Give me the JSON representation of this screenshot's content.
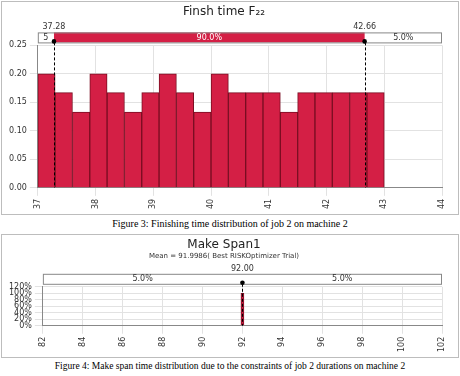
{
  "chart_data": [
    {
      "type": "histogram",
      "title": "Finsh time F₂₂",
      "bins": [
        37,
        37.3,
        37.6,
        37.9,
        38.2,
        38.5,
        38.8,
        39.1,
        39.4,
        39.7,
        40,
        40.3,
        40.6,
        40.9,
        41.2,
        41.5,
        41.8,
        42.1,
        42.4,
        42.7,
        43
      ],
      "values": [
        0.2,
        0.167,
        0.133,
        0.2,
        0.167,
        0.133,
        0.167,
        0.2,
        0.167,
        0.133,
        0.2,
        0.167,
        0.167,
        0.167,
        0.133,
        0.167,
        0.167,
        0.167,
        0.167,
        0.167
      ],
      "color": "#d41f45",
      "xlim": [
        37,
        44
      ],
      "xticks": [
        37,
        38,
        39,
        40,
        41,
        42,
        43,
        44
      ],
      "ylim": [
        0,
        0.25
      ],
      "yticks": [
        {
          "value": 0,
          "label": "0.00"
        },
        {
          "value": 0.05,
          "label": "0.05"
        },
        {
          "value": 0.1,
          "label": "0.10"
        },
        {
          "value": 0.15,
          "label": "0.15"
        },
        {
          "value": 0.2,
          "label": "0.20"
        },
        {
          "value": 0.25,
          "label": "0.25"
        }
      ],
      "grid": true,
      "delimiters": [
        37.28,
        42.66
      ],
      "region_labels": [
        "5",
        "90.0%",
        "5.0%"
      ]
    },
    {
      "type": "bar",
      "title": "Make Span1",
      "subtitle": "Mean = 91.9986( Best RISKOptimizer Trial)",
      "x": [
        92
      ],
      "values": [
        100
      ],
      "color": "#d41f45",
      "xlim": [
        82,
        102
      ],
      "xticks": [
        82,
        84,
        86,
        88,
        90,
        92,
        94,
        96,
        98,
        100,
        102
      ],
      "ylim": [
        0,
        120
      ],
      "yticks": [
        {
          "value": 0,
          "label": "0%"
        },
        {
          "value": 20,
          "label": "20%"
        },
        {
          "value": 40,
          "label": "40%"
        },
        {
          "value": 60,
          "label": "60%"
        },
        {
          "value": 80,
          "label": "80%"
        },
        {
          "value": 100,
          "label": "100%"
        },
        {
          "value": 120,
          "label": "120%"
        }
      ],
      "grid": true,
      "delimiters": [
        {
          "value": 92,
          "label": "92.00"
        }
      ],
      "region_labels": [
        "5.0%",
        null,
        "5.0%"
      ]
    }
  ],
  "captions": [
    "Figure 3: Finishing time distribution of job 2 on machine 2",
    "Figure 4: Make span time distribution due to the constraints of job 2 durations on machine 2"
  ]
}
